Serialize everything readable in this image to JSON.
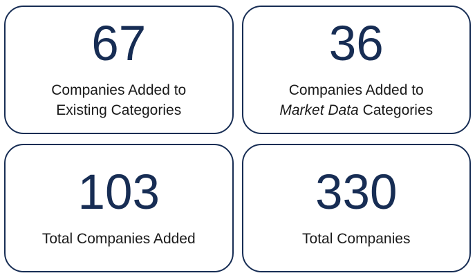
{
  "theme": {
    "navy": "#172D54",
    "label_text": "#1A1A1A",
    "background": "#FFFFFF"
  },
  "cards": {
    "top_left": {
      "value": "67",
      "line1": "Companies Added to",
      "line2": "Existing Categories"
    },
    "top_right": {
      "value": "36",
      "line1": "Companies Added to",
      "line2_italic": "Market Data",
      "line2_rest": " Categories"
    },
    "bottom_left": {
      "value": "103",
      "label": "Total Companies Added"
    },
    "bottom_right": {
      "value": "330",
      "label": "Total Companies"
    }
  },
  "chart_data": {
    "type": "table",
    "title": "",
    "categories": [
      "Companies Added to Existing Categories",
      "Companies Added to Market Data Categories",
      "Total Companies Added",
      "Total Companies"
    ],
    "values": [
      67,
      36,
      103,
      330
    ],
    "layout": "2x2 stat cards",
    "accent_color": "#172D54"
  }
}
